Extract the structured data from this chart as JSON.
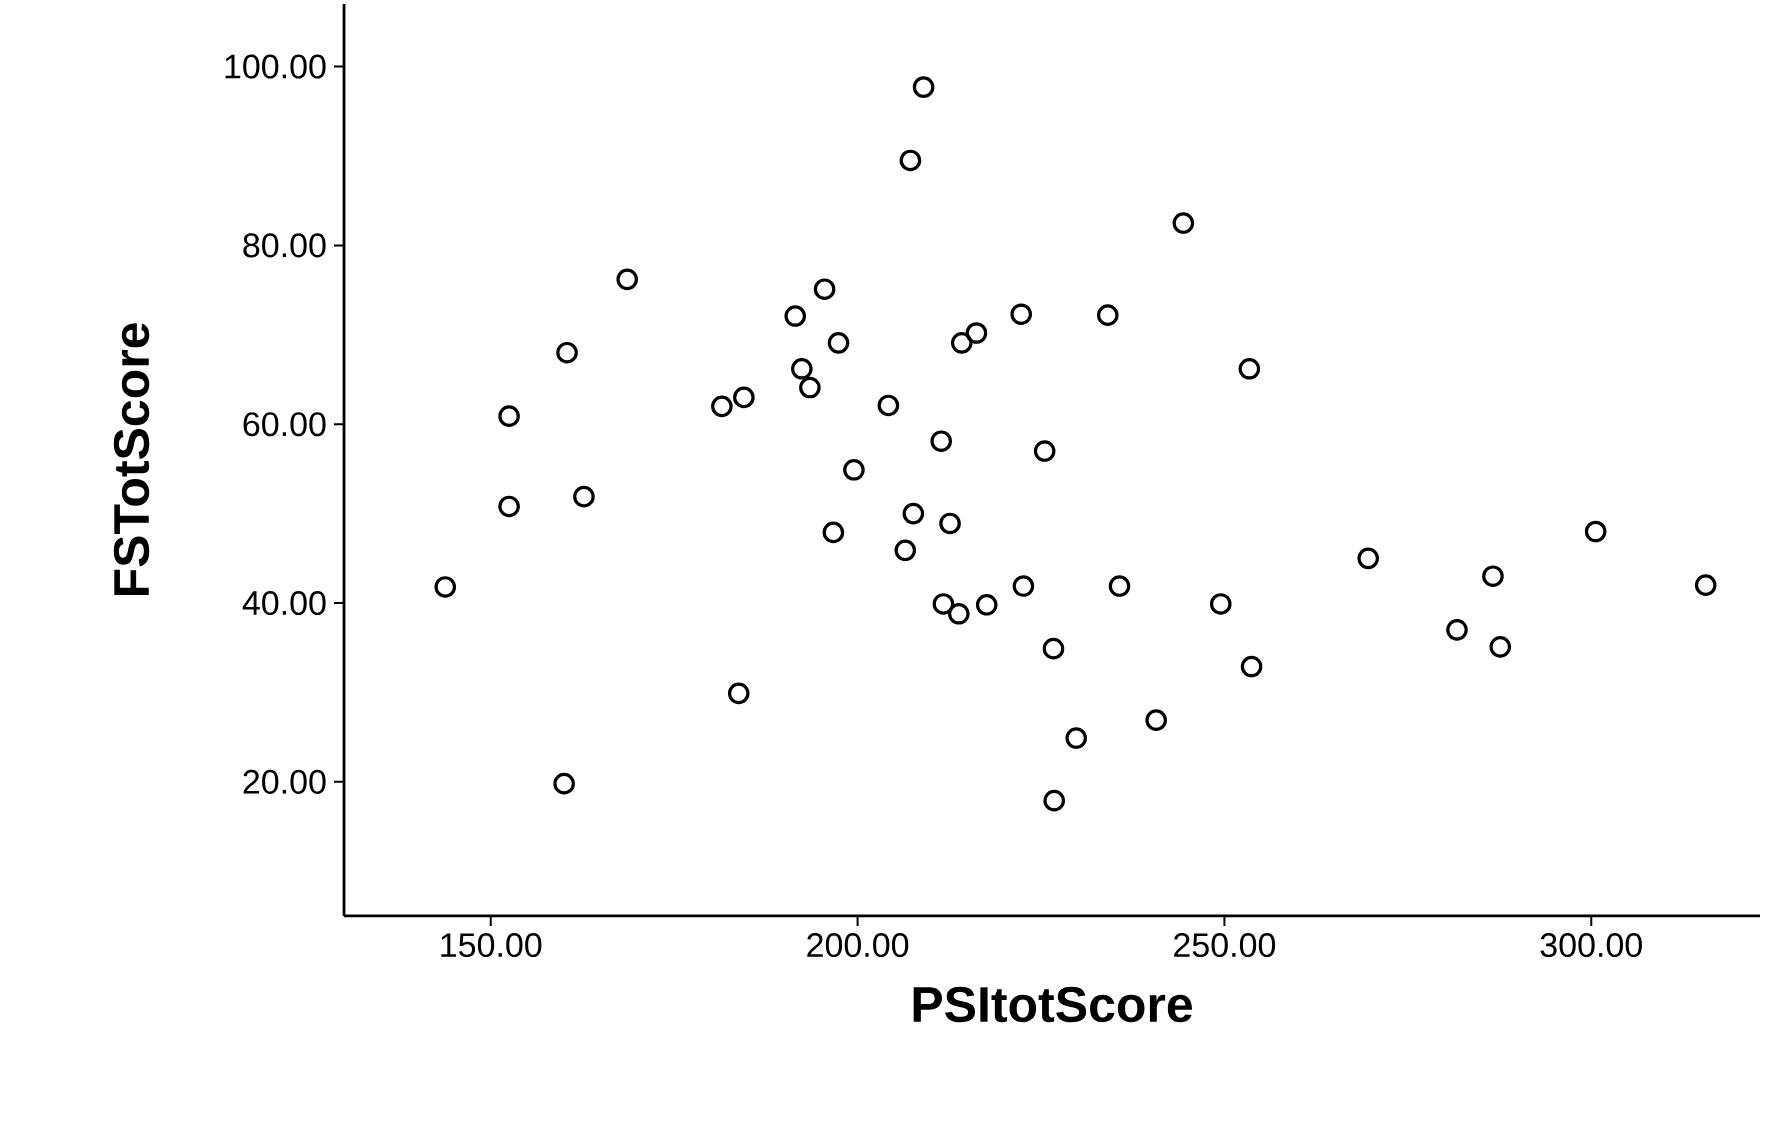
{
  "chart_data": {
    "type": "scatter",
    "xlabel": "PSItotScore",
    "ylabel": "FSTotScore",
    "xlim": [
      130,
      323
    ],
    "ylim": [
      5,
      107
    ],
    "xticks": [
      {
        "value": 150,
        "label": "150.00"
      },
      {
        "value": 200,
        "label": "200.00"
      },
      {
        "value": 250,
        "label": "250.00"
      },
      {
        "value": 300,
        "label": "300.00"
      }
    ],
    "yticks": [
      {
        "value": 20,
        "label": "20.00"
      },
      {
        "value": 40,
        "label": "40.00"
      },
      {
        "value": 60,
        "label": "60.00"
      },
      {
        "value": 80,
        "label": "80.00"
      },
      {
        "value": 100,
        "label": "100.00"
      }
    ],
    "marker": "circle",
    "series": [
      {
        "color": "#000000",
        "x": [
          209.0,
          207.2,
          168.6,
          160.4,
          195.5,
          191.5,
          197.4,
          216.2,
          214.2,
          222.3,
          152.5,
          192.4,
          193.5,
          184.5,
          181.5,
          204.2,
          211.4,
          225.5,
          199.5,
          162.7,
          152.5,
          207.6,
          212.6,
          196.7,
          206.5,
          143.8,
          222.6,
          211.7,
          213.8,
          217.6,
          226.7,
          183.8,
          229.8,
          160.0,
          226.8,
          235.7,
          249.5,
          253.7,
          240.7,
          269.6,
          286.6,
          300.6,
          315.6,
          281.7,
          287.6,
          244.4,
          234.1,
          253.4
        ],
        "values": [
          97.7,
          89.5,
          76.2,
          68.0,
          75.1,
          72.1,
          69.1,
          70.2,
          69.1,
          72.3,
          60.9,
          66.2,
          64.1,
          63.0,
          62.0,
          62.1,
          58.1,
          57.0,
          54.9,
          51.9,
          50.8,
          50.0,
          48.9,
          47.9,
          45.9,
          41.8,
          41.9,
          39.9,
          38.8,
          39.8,
          34.9,
          29.9,
          24.9,
          19.8,
          17.9,
          41.9,
          39.9,
          32.9,
          26.9,
          45.0,
          43.0,
          48.0,
          42.0,
          37.0,
          35.1,
          82.5,
          72.2,
          66.2
        ]
      }
    ]
  }
}
